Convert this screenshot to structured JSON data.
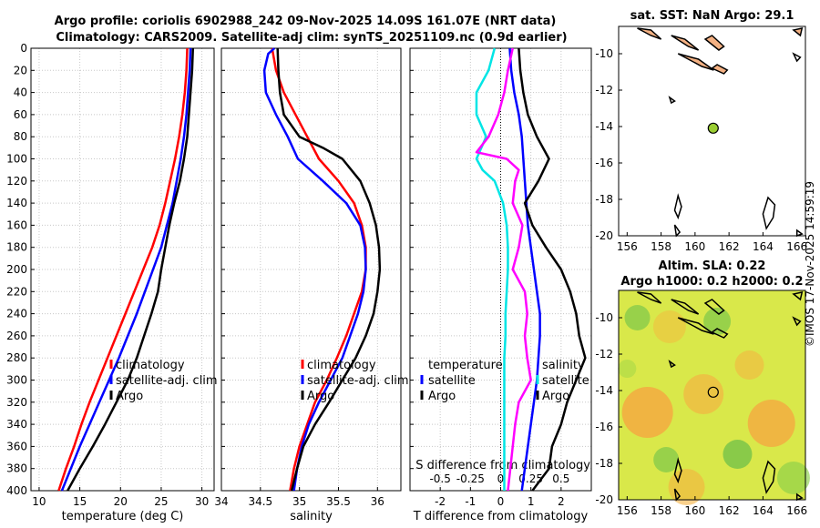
{
  "figure": {
    "title_line1": "Argo profile: coriolis 6902988_242 09-Nov-2025 14.09S 161.07E (NRT data)",
    "title_line2": "Climatology: CARS2009. Satellite-adj clim: synTS_20251109.nc (0.9d earlier)",
    "credit": "©IMOS 17-Nov-2025 14:59:19"
  },
  "colors": {
    "climatology": "#ff0000",
    "satellite": "#0000ff",
    "argo": "#000000",
    "t_diff": "#00e5e5",
    "s_diff": "#ff00ff",
    "grid": "#c8c8c8"
  },
  "chart_data": [
    {
      "id": "temperature",
      "type": "line",
      "xlabel": "temperature (deg C)",
      "ylabel": "",
      "xlim": [
        9,
        31.5
      ],
      "ylim": [
        400,
        0
      ],
      "xticks": [
        10,
        15,
        20,
        25,
        30
      ],
      "yticks": [
        0,
        20,
        40,
        60,
        80,
        100,
        120,
        140,
        160,
        180,
        200,
        220,
        240,
        260,
        280,
        300,
        320,
        340,
        360,
        380,
        400
      ],
      "legend": [
        "climatology",
        "satellite-adj. clim",
        "Argo"
      ],
      "legend_position": "lower-right",
      "series": [
        {
          "name": "climatology",
          "color_key": "climatology",
          "depth": [
            0,
            20,
            40,
            60,
            80,
            100,
            120,
            140,
            160,
            180,
            200,
            220,
            240,
            260,
            280,
            300,
            320,
            340,
            360,
            380,
            400
          ],
          "values": [
            28.2,
            28.1,
            27.9,
            27.6,
            27.2,
            26.7,
            26.1,
            25.5,
            24.8,
            23.9,
            22.8,
            21.7,
            20.6,
            19.5,
            18.4,
            17.3,
            16.2,
            15.2,
            14.3,
            13.3,
            12.4
          ]
        },
        {
          "name": "satellite-adj. clim",
          "color_key": "satellite",
          "depth": [
            0,
            20,
            40,
            60,
            80,
            100,
            120,
            140,
            160,
            180,
            200,
            220,
            240,
            260,
            280,
            300,
            320,
            340,
            360,
            380,
            400
          ],
          "values": [
            28.6,
            28.5,
            28.3,
            28.1,
            27.8,
            27.4,
            26.9,
            26.4,
            25.7,
            25.0,
            24.0,
            23.0,
            22.0,
            20.9,
            19.8,
            18.6,
            17.4,
            16.2,
            15.0,
            13.9,
            12.8
          ]
        },
        {
          "name": "Argo",
          "color_key": "argo",
          "depth": [
            0,
            20,
            40,
            60,
            80,
            100,
            120,
            140,
            160,
            180,
            200,
            220,
            240,
            260,
            280,
            300,
            320,
            340,
            360,
            380,
            400
          ],
          "values": [
            28.9,
            28.8,
            28.6,
            28.4,
            28.2,
            27.8,
            27.3,
            26.6,
            26.0,
            25.5,
            25.0,
            24.6,
            23.8,
            22.9,
            22.0,
            20.9,
            19.5,
            18.1,
            16.6,
            15.0,
            13.5
          ]
        }
      ]
    },
    {
      "id": "salinity",
      "type": "line",
      "xlabel": "salinity",
      "ylabel": "",
      "xlim": [
        34.0,
        36.3
      ],
      "ylim": [
        400,
        0
      ],
      "xticks": [
        34,
        34.5,
        35,
        35.5,
        36
      ],
      "legend": [
        "climatology",
        "satellite-adj. clim",
        "Argo"
      ],
      "legend_position": "lower-right",
      "series": [
        {
          "name": "climatology",
          "color_key": "climatology",
          "depth": [
            0,
            20,
            40,
            60,
            80,
            100,
            120,
            140,
            160,
            180,
            200,
            220,
            240,
            260,
            280,
            300,
            320,
            340,
            360,
            380,
            400
          ],
          "values": [
            34.65,
            34.7,
            34.8,
            34.95,
            35.1,
            35.25,
            35.5,
            35.7,
            35.8,
            35.85,
            35.85,
            35.8,
            35.7,
            35.6,
            35.48,
            35.35,
            35.2,
            35.1,
            35.0,
            34.93,
            34.88
          ]
        },
        {
          "name": "satellite-adj. clim",
          "color_key": "satellite",
          "depth": [
            0,
            5,
            20,
            40,
            60,
            80,
            100,
            120,
            140,
            160,
            180,
            200,
            220,
            240,
            260,
            280,
            300,
            320,
            340,
            360,
            380,
            400
          ],
          "values": [
            34.68,
            34.6,
            34.55,
            34.57,
            34.7,
            34.85,
            34.98,
            35.3,
            35.6,
            35.78,
            35.84,
            35.85,
            35.82,
            35.75,
            35.65,
            35.55,
            35.4,
            35.25,
            35.12,
            35.03,
            34.97,
            34.93
          ]
        },
        {
          "name": "Argo",
          "color_key": "argo",
          "depth": [
            0,
            20,
            40,
            60,
            80,
            90,
            100,
            120,
            140,
            160,
            180,
            200,
            220,
            240,
            260,
            280,
            300,
            320,
            340,
            360,
            380,
            400
          ],
          "values": [
            34.72,
            34.73,
            34.75,
            34.8,
            35.0,
            35.3,
            35.55,
            35.78,
            35.9,
            35.98,
            36.02,
            36.03,
            36.0,
            35.95,
            35.85,
            35.72,
            35.55,
            35.38,
            35.2,
            35.05,
            34.97,
            34.9
          ]
        }
      ]
    },
    {
      "id": "difference",
      "type": "line",
      "xlabel": "T difference from climatology",
      "xlabel2": "S difference from climatology",
      "xlim": [
        -3,
        3
      ],
      "x2lim": [
        -0.75,
        0.75
      ],
      "ylim": [
        400,
        0
      ],
      "xticks": [
        -2,
        -1,
        0,
        1,
        2
      ],
      "x2ticks": [
        "-0.5",
        "-0.25",
        "0",
        "0.25",
        "0.5"
      ],
      "x2tick_values": [
        -0.5,
        -0.25,
        0,
        0.25,
        0.5
      ],
      "legend_left": [
        "temperature",
        "satellite",
        "Argo"
      ],
      "legend_right": [
        "salinity",
        "satellite",
        "Argo"
      ],
      "series": [
        {
          "name": "T satellite-clim",
          "color_key": "satellite",
          "axis": "T",
          "depth": [
            0,
            20,
            40,
            60,
            80,
            100,
            120,
            140,
            160,
            180,
            200,
            220,
            240,
            260,
            280,
            300,
            320,
            340,
            360,
            380,
            400
          ],
          "values": [
            0.3,
            0.35,
            0.45,
            0.6,
            0.7,
            0.75,
            0.8,
            0.85,
            0.9,
            1.0,
            1.1,
            1.2,
            1.3,
            1.3,
            1.25,
            1.2,
            1.1,
            1.0,
            0.9,
            0.8,
            0.7
          ]
        },
        {
          "name": "T Argo-clim",
          "color_key": "argo",
          "axis": "T",
          "depth": [
            0,
            20,
            40,
            60,
            80,
            100,
            120,
            140,
            160,
            180,
            200,
            220,
            240,
            260,
            280,
            300,
            320,
            340,
            360,
            380,
            400
          ],
          "values": [
            0.6,
            0.65,
            0.75,
            0.9,
            1.2,
            1.6,
            1.25,
            0.8,
            1.05,
            1.5,
            2.0,
            2.3,
            2.5,
            2.6,
            2.8,
            2.5,
            2.2,
            2.0,
            1.7,
            1.6,
            1.05
          ]
        },
        {
          "name": "S satellite-clim",
          "color_key": "t_diff",
          "axis": "S",
          "depth": [
            0,
            20,
            40,
            60,
            80,
            100,
            110,
            120,
            140,
            160,
            180,
            200,
            220,
            240,
            260,
            280,
            300,
            320,
            340,
            360,
            380,
            400
          ],
          "values": [
            -0.05,
            -0.1,
            -0.2,
            -0.2,
            -0.12,
            -0.2,
            -0.15,
            -0.05,
            0.02,
            0.05,
            0.06,
            0.06,
            0.05,
            0.04,
            0.04,
            0.03,
            0.03,
            0.03,
            0.03,
            0.03,
            0.03,
            0.03
          ]
        },
        {
          "name": "S Argo-clim",
          "color_key": "s_diff",
          "axis": "S",
          "depth": [
            0,
            20,
            40,
            60,
            80,
            94,
            100,
            110,
            120,
            140,
            160,
            180,
            200,
            220,
            240,
            260,
            280,
            300,
            320,
            340,
            360,
            380,
            400
          ],
          "values": [
            0.1,
            0.06,
            0.03,
            -0.02,
            -0.1,
            -0.2,
            0.05,
            0.15,
            0.12,
            0.1,
            0.18,
            0.15,
            0.1,
            0.2,
            0.22,
            0.2,
            0.22,
            0.25,
            0.15,
            0.12,
            0.1,
            0.08,
            0.06
          ]
        }
      ]
    },
    {
      "id": "sst_map",
      "type": "map",
      "title": "sat. SST: NaN Argo: 29.1",
      "xlim": [
        155.5,
        166.5
      ],
      "ylim": [
        -20,
        -8.5
      ],
      "xticks": [
        "156",
        "158",
        "160",
        "162",
        "164",
        "166"
      ],
      "xtick_values": [
        156,
        158,
        160,
        162,
        164,
        166
      ],
      "yticks": [
        "-10",
        "-12",
        "-14",
        "-16",
        "-18",
        "-20"
      ],
      "ytick_values": [
        -10,
        -12,
        -14,
        -16,
        -18,
        -20
      ],
      "profile_lon": 161.07,
      "profile_lat": -14.09,
      "marker_color": "#9acd32",
      "land_color": "#f4b183"
    },
    {
      "id": "sla_map",
      "type": "map",
      "title_line1": "Altim. SLA: 0.22",
      "title_line2": "Argo h1000: 0.2 h2000: 0.2",
      "xlim": [
        155.5,
        166.5
      ],
      "ylim": [
        -20,
        -8.5
      ],
      "xticks": [
        "156",
        "158",
        "160",
        "162",
        "164",
        "166"
      ],
      "xtick_values": [
        156,
        158,
        160,
        162,
        164,
        166
      ],
      "yticks": [
        "-10",
        "-12",
        "-14",
        "-16",
        "-18",
        "-20"
      ],
      "ytick_values": [
        -10,
        -12,
        -14,
        -16,
        -18,
        -20
      ],
      "profile_lon": 161.07,
      "profile_lat": -14.09,
      "field_base_color": "#d9e84a"
    }
  ]
}
